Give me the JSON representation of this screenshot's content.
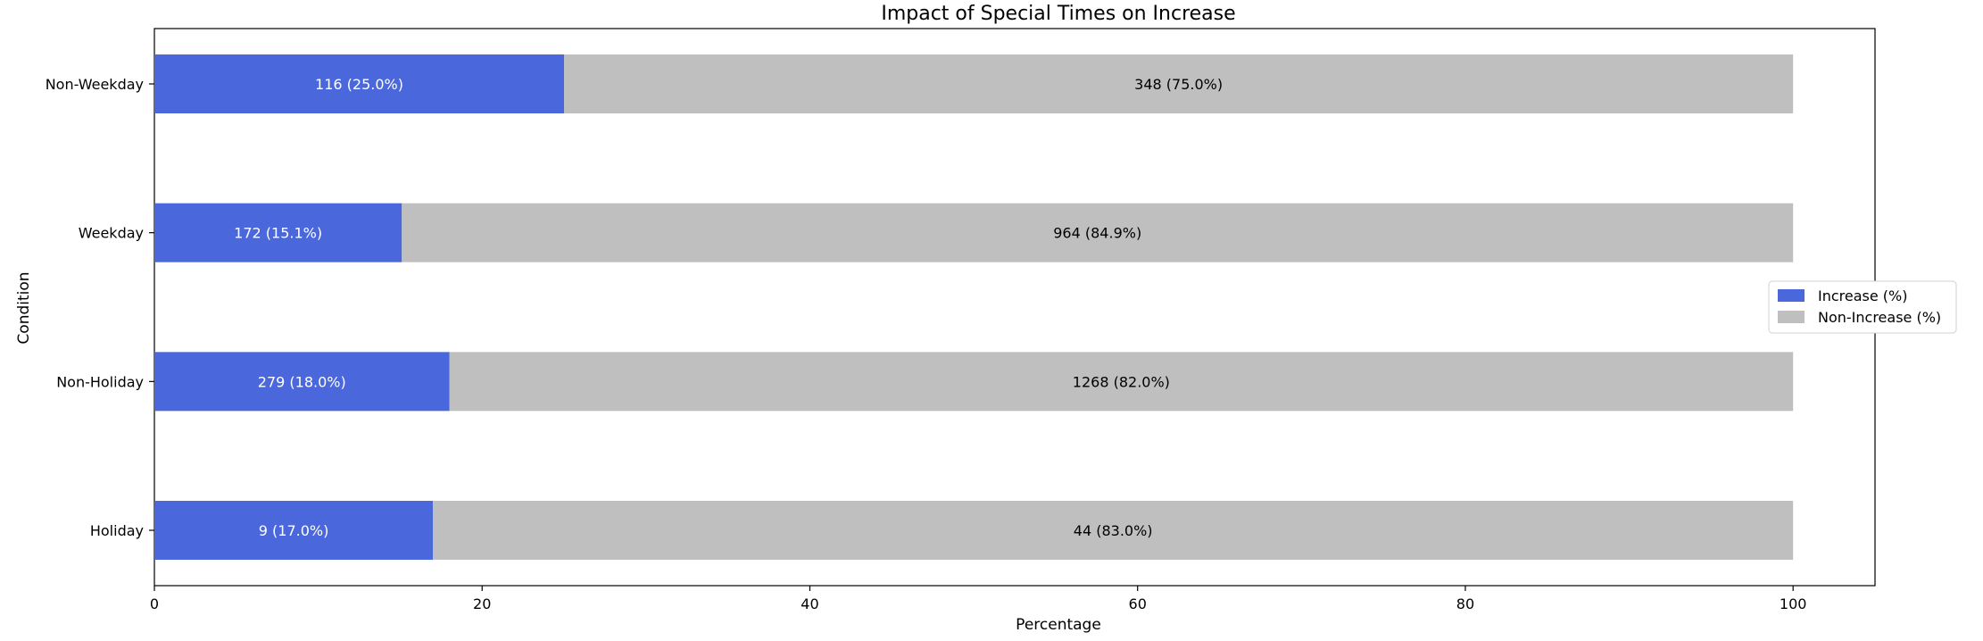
{
  "chart_data": {
    "type": "bar",
    "orientation": "horizontal",
    "stacked": true,
    "title": "Impact of Special Times on Increase",
    "xlabel": "Percentage",
    "ylabel": "Condition",
    "xlim": [
      0,
      105
    ],
    "xticks": [
      0,
      20,
      40,
      60,
      80,
      100
    ],
    "categories": [
      "Holiday",
      "Non-Holiday",
      "Weekday",
      "Non-Weekday"
    ],
    "series": [
      {
        "name": "Increase (%)",
        "color": "#4a68dc",
        "label_color": "#ffffff",
        "values": [
          17.0,
          18.0,
          15.1,
          25.0
        ],
        "labels": [
          "9 (17.0%)",
          "279 (18.0%)",
          "172 (15.1%)",
          "116 (25.0%)"
        ]
      },
      {
        "name": "Non-Increase (%)",
        "color": "#bfbfbf",
        "label_color": "#000000",
        "values": [
          83.0,
          82.0,
          84.9,
          75.0
        ],
        "labels": [
          "44 (83.0%)",
          "1268 (82.0%)",
          "964 (84.9%)",
          "348 (75.0%)"
        ]
      }
    ],
    "grid": false,
    "legend_position": "center-right"
  }
}
